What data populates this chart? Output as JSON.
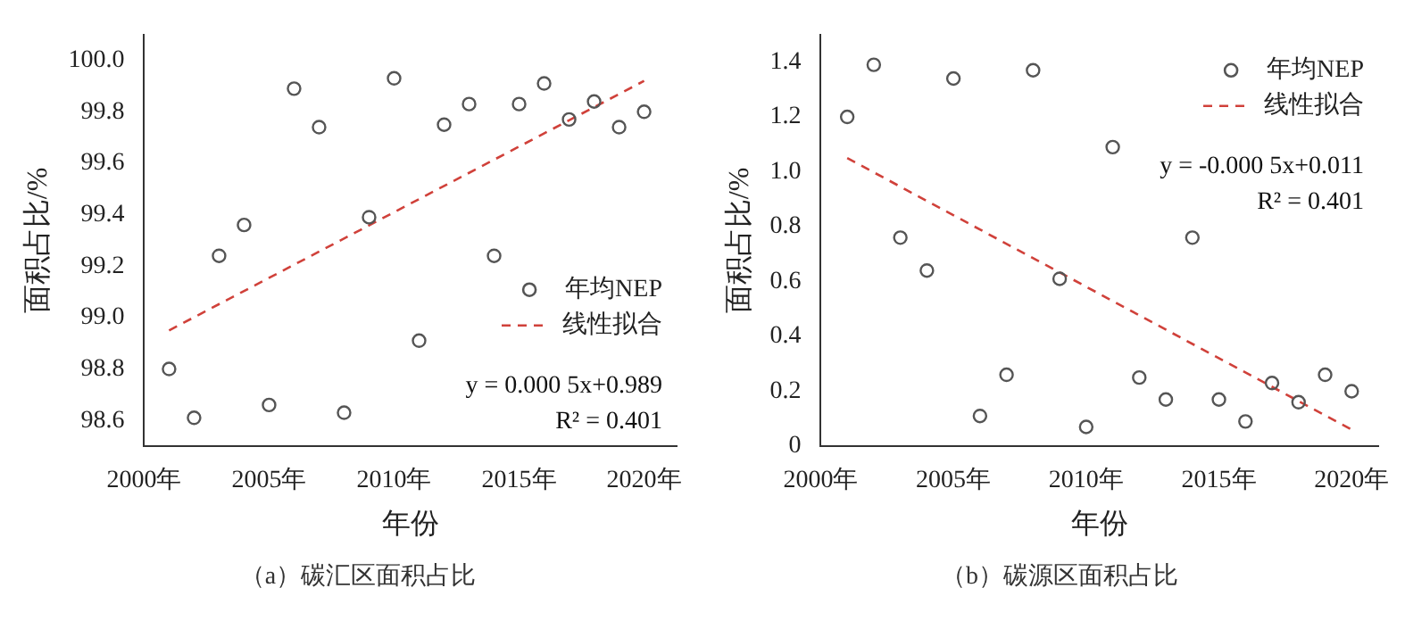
{
  "chart_data": [
    {
      "type": "scatter",
      "xlabel": "年份",
      "ylabel": "面积占比/%",
      "legend": "right",
      "grid": false,
      "marker": "circle",
      "annotations": [
        "y = 0.000 5x+0.989",
        "R² = 0.401",
        "（a）碳汇区面积占比"
      ],
      "xlim": [
        2000,
        2021.3
      ],
      "xticks": [
        {
          "value": 2000,
          "label": "2000年"
        },
        {
          "value": 2005,
          "label": "2005年"
        },
        {
          "value": 2010,
          "label": "2010年"
        },
        {
          "value": 2015,
          "label": "2015年"
        },
        {
          "value": 2020,
          "label": "2020年"
        }
      ],
      "ylim": [
        98.5,
        100.1
      ],
      "yticks": [
        {
          "value": 98.6,
          "label": "98.6"
        },
        {
          "value": 98.8,
          "label": "98.8"
        },
        {
          "value": 99.0,
          "label": "99.0"
        },
        {
          "value": 99.2,
          "label": "99.2"
        },
        {
          "value": 99.4,
          "label": "99.4"
        },
        {
          "value": 99.6,
          "label": "99.6"
        },
        {
          "value": 99.8,
          "label": "99.8"
        },
        {
          "value": 100.0,
          "label": "100.0"
        }
      ],
      "series": [
        {
          "name": "年均NEP",
          "color": "#555555",
          "x": [
            2001,
            2002,
            2003,
            2004,
            2005,
            2006,
            2007,
            2008,
            2009,
            2010,
            2011,
            2012,
            2013,
            2014,
            2015,
            2016,
            2017,
            2018,
            2019,
            2020
          ],
          "values": [
            98.8,
            98.61,
            99.24,
            99.36,
            98.66,
            99.89,
            99.74,
            98.63,
            99.39,
            99.93,
            98.91,
            99.75,
            99.83,
            99.24,
            99.83,
            99.91,
            99.77,
            99.84,
            99.74,
            99.8
          ]
        },
        {
          "name": "线性拟合",
          "type": "line",
          "color": "#d0413a",
          "line_style": "dashed",
          "marker": "none",
          "x": [
            2001,
            2020
          ],
          "values": [
            98.95,
            99.92
          ]
        }
      ]
    },
    {
      "type": "scatter",
      "xlabel": "年份",
      "ylabel": "面积占比/%",
      "legend": "top right",
      "grid": false,
      "marker": "circle",
      "annotations": [
        "y = -0.000 5x+0.011",
        "R² = 0.401",
        "（b）碳源区面积占比"
      ],
      "xlim": [
        2000,
        2021
      ],
      "xticks": [
        {
          "value": 2000,
          "label": "2000年"
        },
        {
          "value": 2005,
          "label": "2005年"
        },
        {
          "value": 2010,
          "label": "2010年"
        },
        {
          "value": 2015,
          "label": "2015年"
        },
        {
          "value": 2020,
          "label": "2020年"
        }
      ],
      "ylim": [
        0,
        1.5
      ],
      "yticks": [
        0,
        0.2,
        0.4,
        0.6,
        0.8,
        {
          "value": 1.0,
          "label": "1.0"
        },
        1.2,
        1.4
      ],
      "series": [
        {
          "name": "年均NEP",
          "color": "#555555",
          "x": [
            2001,
            2002,
            2003,
            2004,
            2005,
            2006,
            2007,
            2008,
            2009,
            2010,
            2011,
            2012,
            2013,
            2014,
            2015,
            2016,
            2017,
            2018,
            2019,
            2020
          ],
          "values": [
            1.2,
            1.39,
            0.76,
            0.64,
            1.34,
            0.11,
            0.26,
            1.37,
            0.61,
            0.07,
            1.09,
            0.25,
            0.17,
            0.76,
            0.17,
            0.09,
            0.23,
            0.16,
            0.26,
            0.2
          ]
        },
        {
          "name": "线性拟合",
          "type": "line",
          "color": "#d0413a",
          "line_style": "dashed",
          "marker": "none",
          "x": [
            2001,
            2020
          ],
          "values": [
            1.05,
            0.06
          ]
        }
      ]
    }
  ]
}
